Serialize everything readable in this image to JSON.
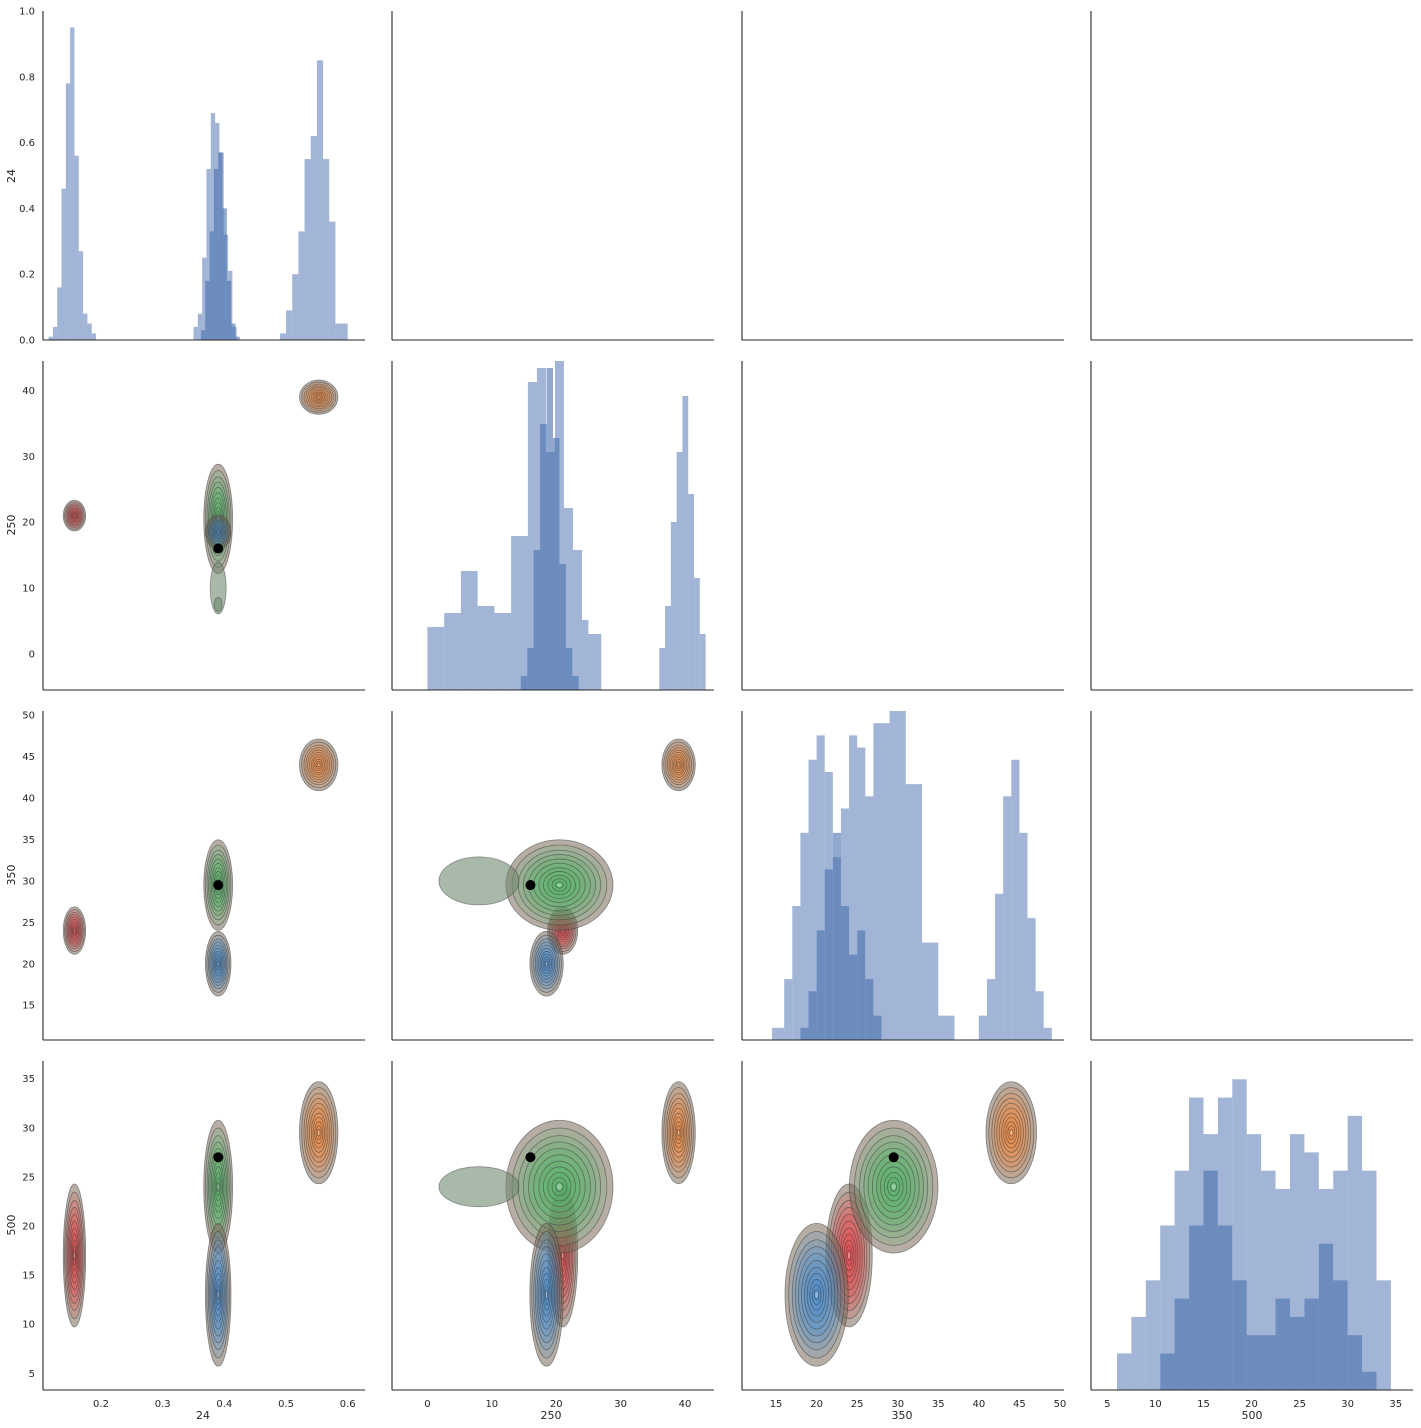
{
  "chart_data": {
    "type": "pairgrid",
    "variables": [
      "24",
      "250",
      "350",
      "500"
    ],
    "axis_labels": {
      "x": [
        "24",
        "250",
        "350",
        "500"
      ],
      "y": [
        "24",
        "250",
        "350",
        "500"
      ]
    },
    "ranges": {
      "24": [
        0.106,
        0.628
      ],
      "250": [
        -5.5,
        44.5
      ],
      "350": [
        10.8,
        50.5
      ],
      "500": [
        3.3,
        36.8
      ]
    },
    "diag_yrange": [
      0,
      1.0
    ],
    "ticks": {
      "24": [
        0.2,
        0.3,
        0.4,
        0.5,
        0.6
      ],
      "250": [
        0,
        10,
        20,
        30,
        40
      ],
      "350": [
        15,
        20,
        25,
        30,
        35,
        40,
        45,
        50
      ],
      "500": [
        5,
        10,
        15,
        20,
        25,
        30,
        35
      ],
      "diag": [
        0.0,
        0.2,
        0.4,
        0.6,
        0.8,
        1.0
      ]
    },
    "tick_labels": {
      "24": [
        "0.2",
        "0.3",
        "0.4",
        "0.5",
        "0.6"
      ],
      "250": [
        "0",
        "10",
        "20",
        "30",
        "40"
      ],
      "350": [
        "15",
        "20",
        "25",
        "30",
        "35",
        "40",
        "45",
        "50"
      ],
      "500": [
        "5",
        "10",
        "15",
        "20",
        "25",
        "30",
        "35"
      ],
      "diag": [
        "0.0",
        "0.2",
        "0.4",
        "0.6",
        "0.8",
        "1.0"
      ]
    },
    "highlight_point": {
      "24": 0.39,
      "250": 16,
      "350": 29.5,
      "500": 27
    },
    "clusters": [
      {
        "name": "red",
        "color": "#e8474d",
        "mean": {
          "24": 0.157,
          "250": 21,
          "350": 24,
          "500": 17
        },
        "sd": {
          "24": 0.007,
          "250": 0.9,
          "350": 1.1,
          "500": 2.8
        }
      },
      {
        "name": "green",
        "color": "#56b36a",
        "mean": {
          "24": 0.39,
          "250": 20.5,
          "350": 29.5,
          "500": 24
        },
        "sd": {
          "24": 0.009,
          "250": 3.2,
          "350": 2.1,
          "500": 2.6
        }
      },
      {
        "name": "blue",
        "color": "#4a8fd0",
        "mean": {
          "24": 0.39,
          "250": 18.5,
          "350": 20,
          "500": 13
        },
        "sd": {
          "24": 0.008,
          "250": 1.0,
          "350": 1.5,
          "500": 2.8
        }
      },
      {
        "name": "orange",
        "color": "#f08a43",
        "mean": {
          "24": 0.553,
          "250": 39,
          "350": 44,
          "500": 29.5
        },
        "sd": {
          "24": 0.012,
          "250": 1.0,
          "350": 1.2,
          "500": 2.0
        }
      }
    ],
    "histograms": {
      "24": {
        "light_edges": [
          0.115,
          0.122,
          0.129,
          0.136,
          0.143,
          0.15,
          0.157,
          0.164,
          0.171,
          0.178,
          0.185,
          0.192,
          0.199,
          0.206
        ],
        "light_heights": [
          0.01,
          0.04,
          0.16,
          0.46,
          0.78,
          0.95,
          0.56,
          0.27,
          0.08,
          0.05,
          0.02,
          0.0,
          0.0
        ],
        "light2_edges": [
          0.35,
          0.357,
          0.364,
          0.371,
          0.378,
          0.385,
          0.392,
          0.399,
          0.406,
          0.413,
          0.42,
          0.427
        ],
        "light2_heights": [
          0.04,
          0.08,
          0.25,
          0.52,
          0.69,
          0.66,
          0.57,
          0.32,
          0.21,
          0.04,
          0.0
        ],
        "light3_edges": [
          0.49,
          0.5,
          0.51,
          0.52,
          0.53,
          0.54,
          0.55,
          0.56,
          0.57,
          0.58,
          0.59,
          0.6,
          0.61
        ],
        "light3_heights": [
          0.02,
          0.09,
          0.2,
          0.33,
          0.55,
          0.62,
          0.85,
          0.55,
          0.36,
          0.05,
          0.05,
          0.0
        ],
        "dark_edges": [
          0.362,
          0.369,
          0.376,
          0.383,
          0.39,
          0.397,
          0.404,
          0.411,
          0.418,
          0.425
        ],
        "dark_heights": [
          0.03,
          0.18,
          0.33,
          0.52,
          0.57,
          0.4,
          0.18,
          0.05,
          0.01
        ]
      },
      "250": {
        "light_edges": [
          0,
          2.6,
          5.2,
          7.8,
          10.4,
          13.0,
          15.6,
          17.0,
          18.4,
          19.8,
          21.2,
          22.6,
          24.0,
          25.0,
          27.0
        ],
        "light_heights": [
          0.045,
          0.055,
          0.085,
          0.06,
          0.055,
          0.11,
          0.22,
          0.23,
          0.17,
          0.25,
          0.13,
          0.1,
          0.05,
          0.04
        ],
        "light2_edges": [
          36,
          36.9,
          37.8,
          38.7,
          39.6,
          40.5,
          41.4,
          42.3,
          43.2
        ],
        "light2_heights": [
          0.03,
          0.06,
          0.12,
          0.17,
          0.21,
          0.14,
          0.08,
          0.04
        ],
        "dark_edges": [
          14.5,
          15.5,
          16.5,
          17.5,
          18.5,
          19.5,
          20.5,
          21.5,
          22.5,
          23.5
        ],
        "dark_heights": [
          0.01,
          0.03,
          0.1,
          0.19,
          0.23,
          0.18,
          0.09,
          0.03,
          0.01
        ]
      },
      "350": {
        "light_edges": [
          14.5,
          16.0,
          17.0,
          18.0,
          19.0,
          20.0,
          21.0,
          22.0,
          23.0,
          24.0,
          25.0,
          26.0,
          27.0,
          29.0,
          31.0,
          33.0,
          35.0,
          37.0
        ],
        "light_heights": [
          0.01,
          0.05,
          0.11,
          0.17,
          0.23,
          0.25,
          0.22,
          0.15,
          0.19,
          0.25,
          0.24,
          0.2,
          0.26,
          0.27,
          0.21,
          0.08,
          0.02
        ],
        "light2_edges": [
          40.0,
          41.0,
          42.0,
          43.0,
          44.0,
          45.0,
          46.0,
          47.0,
          48.0,
          49.0
        ],
        "light2_heights": [
          0.02,
          0.05,
          0.12,
          0.2,
          0.23,
          0.17,
          0.1,
          0.04,
          0.01
        ],
        "dark_edges": [
          18.0,
          19.0,
          20.0,
          21.0,
          22.0,
          23.0,
          24.0,
          25.0,
          26.0,
          27.0,
          28.0
        ],
        "dark_heights": [
          0.01,
          0.04,
          0.09,
          0.14,
          0.17,
          0.11,
          0.07,
          0.09,
          0.05,
          0.02
        ]
      },
      "500": {
        "light_edges": [
          6.0,
          7.5,
          9.0,
          10.5,
          12.0,
          13.5,
          15.0,
          16.5,
          18.0,
          19.5,
          21.0,
          22.5,
          24.0,
          25.5,
          27.0,
          28.5,
          30.0,
          31.5,
          33.0,
          34.5
        ],
        "light_heights": [
          0.02,
          0.04,
          0.06,
          0.09,
          0.12,
          0.16,
          0.14,
          0.16,
          0.17,
          0.14,
          0.12,
          0.11,
          0.14,
          0.13,
          0.11,
          0.12,
          0.15,
          0.12,
          0.06
        ],
        "dark_edges": [
          9.0,
          10.5,
          12.0,
          13.5,
          15.0,
          16.5,
          18.0,
          19.5,
          21.0,
          22.5,
          24.0,
          25.5,
          27.0,
          28.5,
          30.0,
          31.5,
          33.0
        ],
        "dark_heights": [
          0.0,
          0.02,
          0.05,
          0.09,
          0.12,
          0.09,
          0.06,
          0.03,
          0.03,
          0.05,
          0.04,
          0.05,
          0.08,
          0.06,
          0.03,
          0.01
        ]
      }
    },
    "diag_counts_scale": {
      "250": 0.235,
      "350": 0.27,
      "500": 0.18
    }
  }
}
